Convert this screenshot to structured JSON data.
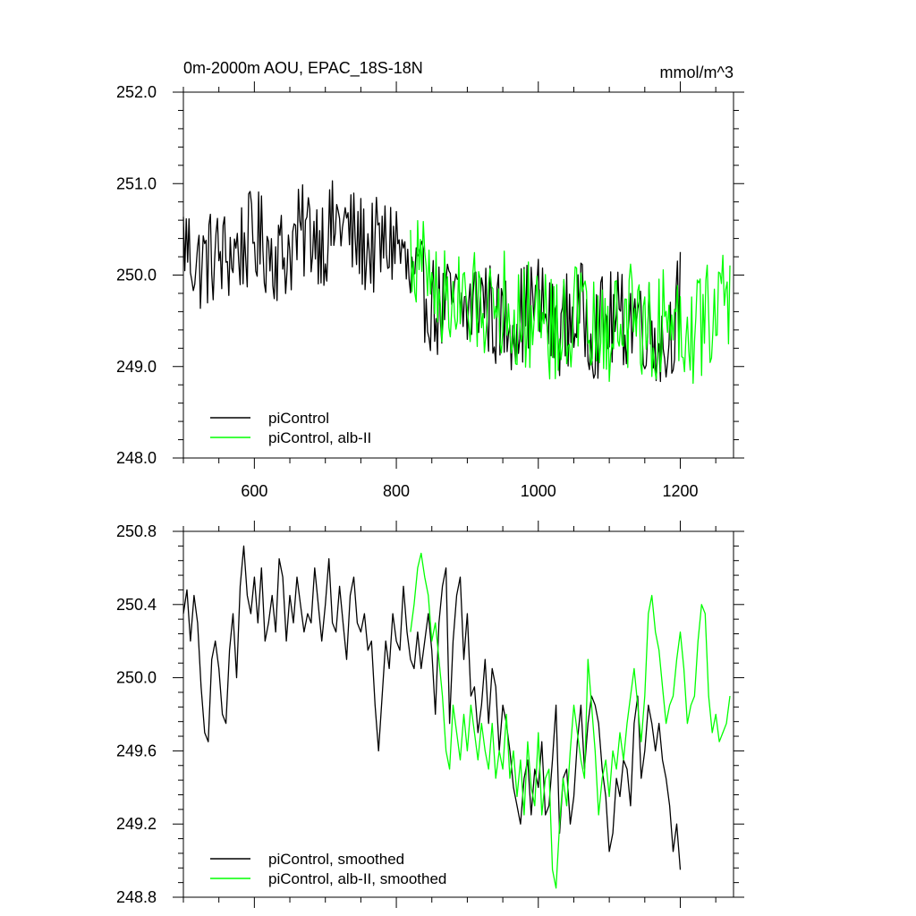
{
  "figure": {
    "title_left": "0m-2000m AOU, EPAC_18S-18N",
    "title_right": "mmol/m^3"
  },
  "chart_data": [
    {
      "type": "line",
      "title": "0m-2000m AOU, EPAC_18S-18N",
      "units": "mmol/m^3",
      "xlim": [
        500,
        1275
      ],
      "ylim": [
        248.0,
        252.0
      ],
      "x_ticks": [
        600,
        800,
        1000,
        1200
      ],
      "x_tick_labels": [
        "600",
        "800",
        "1000",
        "1200"
      ],
      "y_ticks": [
        248.0,
        249.0,
        250.0,
        251.0,
        252.0
      ],
      "y_tick_labels": [
        "248.0",
        "249.0",
        "250.0",
        "251.0",
        "252.0"
      ],
      "grid": false,
      "legend_position": "bottom-left",
      "series": [
        {
          "name": "piControl",
          "color": "#000000",
          "x_start": 500,
          "x_step": 20,
          "note_values_are_sampled_envelope_centers": "",
          "values": [
            250.4,
            250.1,
            250.2,
            250.2,
            250.3,
            250.4,
            250.3,
            250.2,
            250.4,
            250.5,
            250.4,
            250.6,
            250.4,
            250.3,
            250.3,
            250.4,
            249.9,
            249.8,
            249.6,
            249.7,
            249.6,
            249.8,
            249.5,
            249.5,
            249.6,
            249.7,
            249.4,
            249.5,
            249.6,
            249.4,
            249.5,
            249.5,
            249.6,
            249.4,
            249.2,
            249.8
          ]
        },
        {
          "name": "piControl, alb-II",
          "color": "#00ff00",
          "x_start": 820,
          "x_step": 20,
          "values": [
            250.2,
            250.1,
            249.8,
            249.7,
            249.6,
            249.7,
            249.8,
            249.6,
            249.5,
            249.7,
            249.4,
            249.5,
            249.6,
            249.3,
            249.4,
            249.5,
            249.6,
            249.3,
            249.6,
            249.5,
            249.4,
            249.6,
            249.7,
            249.8,
            250.2,
            250.0,
            250.0,
            250.1,
            249.9,
            249.8,
            249.8,
            249.9,
            249.9
          ]
        }
      ]
    },
    {
      "type": "line",
      "xlim": [
        500,
        1275
      ],
      "ylim": [
        248.8,
        250.8
      ],
      "x_ticks": [
        600,
        800,
        1000,
        1200
      ],
      "y_ticks": [
        248.8,
        249.2,
        249.6,
        250.0,
        250.4,
        250.8
      ],
      "y_tick_labels": [
        "248.8",
        "249.2",
        "249.6",
        "250.0",
        "250.4",
        "250.8"
      ],
      "grid": false,
      "legend_position": "bottom-left",
      "series": [
        {
          "name": "piControl, smoothed",
          "color": "#000000",
          "x": [
            500,
            505,
            510,
            515,
            520,
            525,
            530,
            535,
            540,
            545,
            550,
            555,
            560,
            565,
            570,
            575,
            580,
            585,
            590,
            595,
            600,
            605,
            610,
            615,
            620,
            625,
            630,
            635,
            640,
            645,
            650,
            655,
            660,
            665,
            670,
            675,
            680,
            685,
            690,
            695,
            700,
            705,
            710,
            715,
            720,
            725,
            730,
            735,
            740,
            745,
            750,
            755,
            760,
            765,
            770,
            775,
            780,
            785,
            790,
            795,
            800,
            805,
            810,
            815,
            820,
            825,
            830,
            835,
            840,
            845,
            850,
            855,
            860,
            865,
            870,
            875,
            880,
            885,
            890,
            895,
            900,
            905,
            910,
            915,
            920,
            925,
            930,
            935,
            940,
            945,
            950,
            955,
            960,
            965,
            970,
            975,
            980,
            985,
            990,
            995,
            1000,
            1005,
            1010,
            1015,
            1020,
            1025,
            1030,
            1035,
            1040,
            1045,
            1050,
            1055,
            1060,
            1065,
            1070,
            1075,
            1080,
            1085,
            1090,
            1095,
            1100,
            1105,
            1110,
            1115,
            1120,
            1125,
            1130,
            1135,
            1140,
            1145,
            1150,
            1155,
            1160,
            1165,
            1170,
            1175,
            1180,
            1185,
            1190,
            1195,
            1200
          ],
          "values": [
            250.35,
            250.48,
            250.2,
            250.45,
            250.3,
            249.95,
            249.7,
            249.65,
            250.1,
            250.2,
            250.05,
            249.8,
            249.75,
            250.15,
            250.35,
            250.0,
            250.5,
            250.72,
            250.45,
            250.35,
            250.55,
            250.3,
            250.6,
            250.2,
            250.3,
            250.45,
            250.25,
            250.65,
            250.55,
            250.2,
            250.45,
            250.3,
            250.55,
            250.4,
            250.25,
            250.35,
            250.3,
            250.6,
            250.4,
            250.2,
            250.4,
            250.65,
            250.3,
            250.25,
            250.5,
            250.3,
            250.1,
            250.45,
            250.55,
            250.3,
            250.25,
            250.35,
            250.15,
            250.2,
            249.85,
            249.6,
            249.9,
            250.2,
            250.05,
            250.35,
            250.2,
            250.15,
            250.5,
            250.25,
            250.1,
            250.05,
            250.25,
            250.05,
            250.2,
            250.35,
            250.15,
            249.8,
            250.3,
            250.5,
            250.6,
            249.75,
            250.2,
            250.45,
            250.55,
            250.1,
            250.35,
            249.9,
            249.95,
            249.7,
            249.85,
            250.1,
            249.75,
            250.05,
            249.95,
            249.6,
            249.85,
            249.75,
            249.6,
            249.4,
            249.3,
            249.2,
            249.45,
            249.55,
            249.25,
            249.5,
            249.4,
            249.65,
            249.25,
            249.3,
            249.55,
            249.85,
            249.15,
            249.45,
            249.5,
            249.2,
            249.35,
            249.65,
            249.85,
            249.5,
            249.75,
            249.9,
            249.85,
            249.75,
            249.5,
            249.35,
            249.05,
            249.15,
            249.45,
            249.35,
            249.55,
            249.5,
            249.3,
            249.75,
            249.9,
            249.45,
            249.6,
            249.85,
            249.75,
            249.6,
            249.75,
            249.55,
            249.45,
            249.3,
            249.05,
            249.2,
            248.95
          ]
        },
        {
          "name": "piControl, alb-II, smoothed",
          "color": "#00ff00",
          "x": [
            820,
            825,
            830,
            835,
            840,
            845,
            850,
            855,
            860,
            865,
            870,
            875,
            880,
            885,
            890,
            895,
            900,
            905,
            910,
            915,
            920,
            925,
            930,
            935,
            940,
            945,
            950,
            955,
            960,
            965,
            970,
            975,
            980,
            985,
            990,
            995,
            1000,
            1005,
            1010,
            1015,
            1020,
            1025,
            1030,
            1035,
            1040,
            1045,
            1050,
            1055,
            1060,
            1065,
            1070,
            1075,
            1080,
            1085,
            1090,
            1095,
            1100,
            1105,
            1110,
            1115,
            1120,
            1125,
            1130,
            1135,
            1140,
            1145,
            1150,
            1155,
            1160,
            1165,
            1170,
            1175,
            1180,
            1185,
            1190,
            1195,
            1200,
            1205,
            1210,
            1215,
            1220,
            1225,
            1230,
            1235,
            1240,
            1245,
            1250,
            1255,
            1260,
            1265,
            1270
          ],
          "values": [
            250.25,
            250.4,
            250.6,
            250.68,
            250.55,
            250.45,
            250.2,
            250.3,
            250.1,
            249.9,
            249.6,
            249.5,
            249.85,
            249.7,
            249.55,
            249.8,
            249.6,
            249.85,
            249.7,
            249.55,
            249.75,
            249.6,
            249.5,
            249.75,
            249.45,
            249.6,
            249.5,
            249.8,
            249.45,
            249.6,
            249.35,
            249.55,
            249.25,
            249.65,
            249.4,
            249.3,
            249.7,
            249.25,
            249.45,
            249.5,
            248.95,
            248.85,
            249.2,
            249.45,
            249.3,
            249.6,
            249.85,
            249.7,
            249.55,
            249.45,
            250.1,
            249.85,
            249.6,
            249.25,
            249.45,
            249.55,
            249.35,
            249.6,
            249.5,
            249.7,
            249.55,
            249.75,
            249.9,
            250.05,
            249.85,
            249.65,
            249.9,
            250.35,
            250.45,
            250.25,
            250.15,
            249.95,
            249.75,
            249.85,
            249.9,
            250.1,
            250.25,
            250.05,
            249.75,
            249.85,
            249.9,
            250.2,
            250.4,
            250.35,
            249.9,
            249.7,
            249.8,
            249.65,
            249.7,
            249.75,
            249.9
          ]
        }
      ]
    }
  ]
}
